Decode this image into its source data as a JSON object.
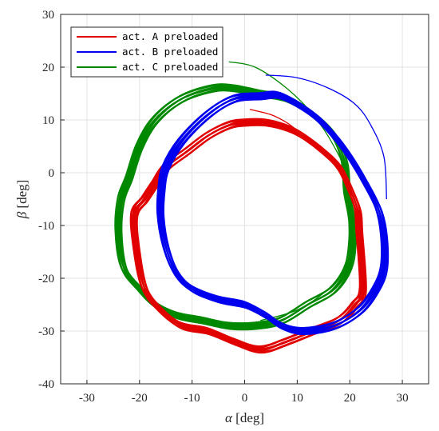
{
  "chart_data": {
    "type": "line",
    "title": "",
    "xlabel_symbol": "α",
    "xlabel_unit": "[deg]",
    "ylabel_symbol": "β",
    "ylabel_unit": "[deg]",
    "xlim": [
      -35,
      35
    ],
    "ylim": [
      -40,
      30
    ],
    "xticks": [
      -30,
      -20,
      -10,
      0,
      10,
      20,
      30
    ],
    "yticks": [
      -40,
      -30,
      -20,
      -10,
      0,
      10,
      20,
      30
    ],
    "xtick_labels": [
      "-30",
      "-20",
      "-10",
      "0",
      "10",
      "20",
      "30"
    ],
    "ytick_labels": [
      "-40",
      "-30",
      "-20",
      "-10",
      "0",
      "10",
      "20",
      "30"
    ],
    "grid": true,
    "legend_position": "top-left",
    "series": [
      {
        "name": "act. A preloaded",
        "color": "#e00000",
        "center": [
          0.5,
          -11.5
        ],
        "approach": [
          [
            1,
            12
          ],
          [
            5,
            11
          ],
          [
            8,
            9.5
          ],
          [
            10,
            8
          ]
        ],
        "x": [
          0,
          4,
          8,
          11,
          15,
          18,
          20,
          21.5,
          21.8,
          22.5,
          21,
          18,
          13,
          8,
          3,
          -2,
          -7,
          -12,
          -16,
          -19,
          -20.5,
          -21,
          -19,
          -17,
          -15,
          -11,
          -7,
          -3
        ],
        "y": [
          9.5,
          9.5,
          8.5,
          7,
          4,
          1,
          -3,
          -7,
          -11,
          -22,
          -25,
          -28,
          -30,
          -32,
          -33.5,
          -32,
          -30,
          -29,
          -26,
          -22,
          -15,
          -8,
          -5,
          -2,
          1,
          4,
          7,
          9
        ]
      },
      {
        "name": "act. B preloaded",
        "color": "#0000ee",
        "center": [
          5.5,
          -7.5
        ],
        "approach": [
          [
            4,
            18.5
          ],
          [
            10,
            18
          ],
          [
            16,
            16
          ],
          [
            21,
            13
          ],
          [
            24,
            9
          ],
          [
            26.5,
            3
          ],
          [
            27,
            -5
          ]
        ],
        "x": [
          3,
          7,
          13,
          17,
          20,
          23,
          25.5,
          26.5,
          26.5,
          25,
          22,
          17,
          11,
          7,
          4,
          0,
          -5,
          -10,
          -13,
          -15,
          -16,
          -15.8,
          -15,
          -12,
          -7,
          -2
        ],
        "y": [
          14.5,
          14.5,
          11,
          7,
          3,
          -2,
          -7,
          -12,
          -18,
          -22,
          -26,
          -29,
          -30,
          -29,
          -27,
          -25,
          -24,
          -22,
          -19,
          -14,
          -8,
          -3,
          1,
          6,
          11,
          14
        ]
      },
      {
        "name": "act. C preloaded",
        "color": "#008800",
        "center": [
          -2.5,
          -6.5
        ],
        "approach": [
          [
            -3,
            21
          ],
          [
            2,
            20
          ],
          [
            8,
            16
          ],
          [
            13,
            11
          ],
          [
            17,
            5
          ],
          [
            20,
            -2
          ],
          [
            20,
            -10
          ],
          [
            19,
            -18
          ],
          [
            16,
            -22
          ],
          [
            10,
            -26
          ],
          [
            3,
            -28
          ]
        ],
        "x": [
          -6,
          -2,
          3,
          8,
          13,
          17,
          19,
          19.5,
          20.5,
          20,
          17,
          12,
          7,
          2,
          -3,
          -8,
          -13,
          -17,
          -20,
          -23,
          -24,
          -23.5,
          -22,
          -20,
          -17,
          -12
        ],
        "y": [
          16,
          16,
          15,
          14,
          11,
          7,
          2,
          -4,
          -10,
          -17,
          -22,
          -25,
          -28,
          -29,
          -29,
          -28,
          -27,
          -25,
          -22,
          -18,
          -11,
          -5,
          -1,
          5,
          10,
          14
        ]
      }
    ]
  }
}
